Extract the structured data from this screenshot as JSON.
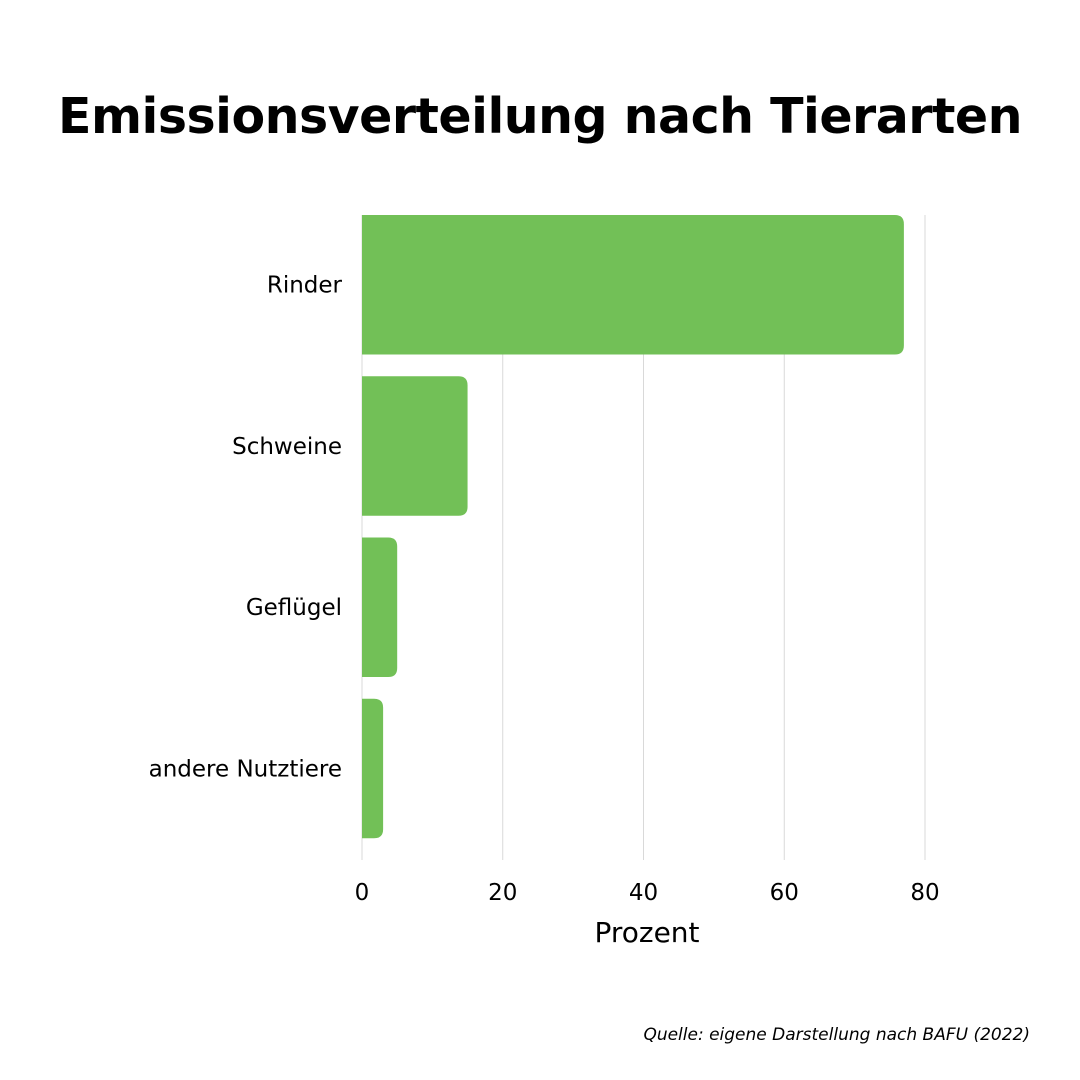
{
  "chart_data": {
    "type": "bar",
    "orientation": "horizontal",
    "title": "Emissionsverteilung nach Tierarten",
    "categories": [
      "Rinder",
      "Schweine",
      "Geflügel",
      "andere Nutztiere"
    ],
    "values": [
      77,
      15,
      5,
      3
    ],
    "xlabel": "Prozent",
    "ylabel": "",
    "xlim": [
      0,
      80
    ],
    "xticks": [
      "0",
      "20",
      "40",
      "60",
      "80"
    ],
    "grid": "vertical",
    "bar_color": "#72c057",
    "source": "Quelle: eigene Darstellung nach BAFU (2022)"
  }
}
